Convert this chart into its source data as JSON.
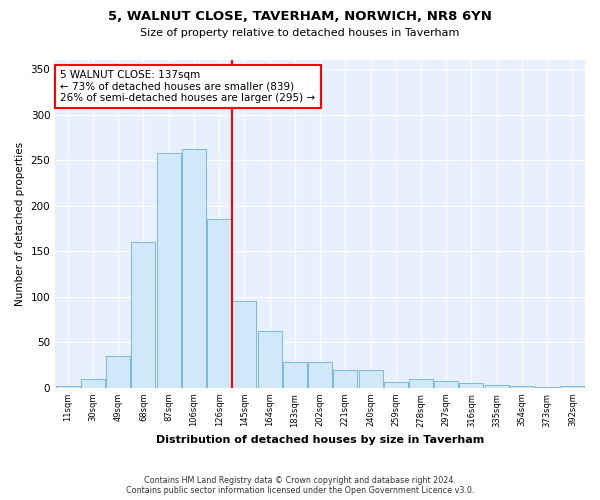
{
  "title_line1": "5, WALNUT CLOSE, TAVERHAM, NORWICH, NR8 6YN",
  "title_line2": "Size of property relative to detached houses in Taverham",
  "xlabel": "Distribution of detached houses by size in Taverham",
  "ylabel": "Number of detached properties",
  "bin_labels": [
    "11sqm",
    "30sqm",
    "49sqm",
    "68sqm",
    "87sqm",
    "106sqm",
    "126sqm",
    "145sqm",
    "164sqm",
    "183sqm",
    "202sqm",
    "221sqm",
    "240sqm",
    "259sqm",
    "278sqm",
    "297sqm",
    "316sqm",
    "335sqm",
    "354sqm",
    "373sqm",
    "392sqm"
  ],
  "bar_values": [
    2,
    10,
    35,
    160,
    258,
    262,
    185,
    95,
    62,
    28,
    28,
    20,
    20,
    6,
    10,
    7,
    5,
    3,
    2,
    1,
    2
  ],
  "bar_color": "#d0e8f8",
  "bar_edge_color": "#7ab8d8",
  "vline_x": 6.5,
  "vline_color": "red",
  "annotation_text": "5 WALNUT CLOSE: 137sqm\n← 73% of detached houses are smaller (839)\n26% of semi-detached houses are larger (295) →",
  "annotation_box_color": "white",
  "annotation_box_edge": "red",
  "ylim": [
    0,
    360
  ],
  "yticks": [
    0,
    50,
    100,
    150,
    200,
    250,
    300,
    350
  ],
  "footer_line1": "Contains HM Land Registry data © Crown copyright and database right 2024.",
  "footer_line2": "Contains public sector information licensed under the Open Government Licence v3.0.",
  "bg_color": "#ffffff",
  "plot_bg_color": "#e8f0ff"
}
